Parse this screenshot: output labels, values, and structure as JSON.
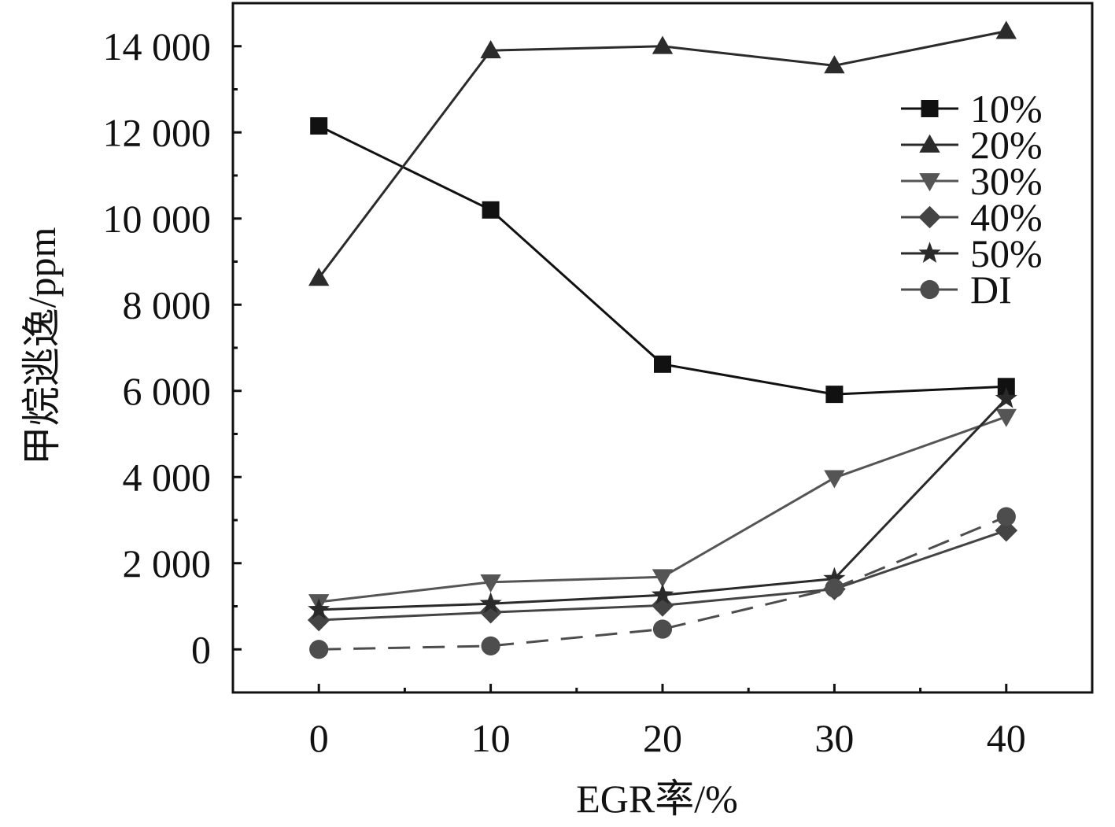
{
  "chart_data": {
    "type": "line",
    "title": "",
    "xlabel": "EGR率/%",
    "ylabel": "甲烷逃逸/ppm",
    "x": [
      0,
      10,
      20,
      30,
      40
    ],
    "xlim": [
      -5,
      45
    ],
    "ylim": [
      -1000,
      15000
    ],
    "x_ticks": [
      0,
      10,
      20,
      30,
      40
    ],
    "x_tick_labels": [
      "0",
      "10",
      "20",
      "30",
      "40"
    ],
    "y_ticks": [
      0,
      2000,
      4000,
      6000,
      8000,
      10000,
      12000,
      14000
    ],
    "y_tick_labels": [
      "0",
      "2 000",
      "4 000",
      "6 000",
      "8 000",
      "10 000",
      "12 000",
      "14 000"
    ],
    "grid": false,
    "legend_position": "top-right",
    "series": [
      {
        "name": "10%",
        "values": [
          12150,
          10200,
          6620,
          5920,
          6100
        ],
        "marker": "square",
        "color": "#111111",
        "dash": false
      },
      {
        "name": "20%",
        "values": [
          8620,
          13900,
          14000,
          13550,
          14350
        ],
        "marker": "triangle-up",
        "color": "#2b2b2b",
        "dash": false
      },
      {
        "name": "30%",
        "values": [
          1100,
          1560,
          1680,
          3980,
          5400
        ],
        "marker": "triangle-down",
        "color": "#555555",
        "dash": false
      },
      {
        "name": "40%",
        "values": [
          680,
          860,
          1020,
          1400,
          2760
        ],
        "marker": "diamond",
        "color": "#444444",
        "dash": false
      },
      {
        "name": "50%",
        "values": [
          920,
          1060,
          1260,
          1640,
          5820
        ],
        "marker": "star",
        "color": "#2a2a2a",
        "dash": false
      },
      {
        "name": "DI",
        "values": [
          0,
          80,
          470,
          1420,
          3080
        ],
        "marker": "circle",
        "color": "#4d4d4d",
        "dash": true
      }
    ]
  }
}
